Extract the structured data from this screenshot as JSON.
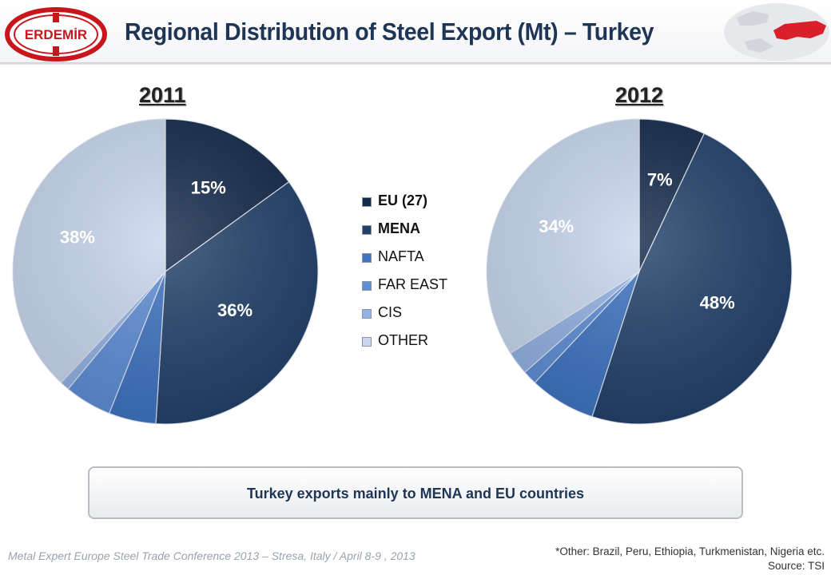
{
  "header": {
    "logo_text": "ERDEMİR",
    "title": "Regional Distribution of Steel Export (Mt) – Turkey"
  },
  "legend": {
    "items": [
      {
        "label": "EU (27)",
        "color": "#142a4a",
        "bold": true
      },
      {
        "label": "MENA",
        "color": "#23426b",
        "bold": true
      },
      {
        "label": "NAFTA",
        "color": "#3f74c2",
        "bold": false
      },
      {
        "label": "FAR EAST",
        "color": "#5e8ed6",
        "bold": false
      },
      {
        "label": "CIS",
        "color": "#92b2e3",
        "bold": false
      },
      {
        "label": "OTHER",
        "color": "#c9d7ee",
        "bold": false
      }
    ]
  },
  "chart_data": [
    {
      "type": "pie",
      "title": "2011",
      "categories": [
        "EU (27)",
        "MENA",
        "NAFTA",
        "FAR EAST",
        "CIS",
        "OTHER"
      ],
      "values": [
        15,
        36,
        5,
        5,
        1,
        38
      ],
      "data_labels": [
        "15%",
        "36%",
        "",
        "",
        "",
        "38%"
      ],
      "colors": [
        "#142a4a",
        "#23426b",
        "#3f74c2",
        "#5e8ed6",
        "#92b2e3",
        "#c9d7ee"
      ]
    },
    {
      "type": "pie",
      "title": "2012",
      "categories": [
        "EU (27)",
        "MENA",
        "NAFTA",
        "FAR EAST",
        "CIS",
        "OTHER"
      ],
      "values": [
        7,
        48,
        7,
        1.5,
        2.5,
        34
      ],
      "data_labels": [
        "7%",
        "48%",
        "",
        "",
        "",
        "34%"
      ],
      "colors": [
        "#142a4a",
        "#23426b",
        "#3f74c2",
        "#5e8ed6",
        "#92b2e3",
        "#c9d7ee"
      ]
    }
  ],
  "callout": {
    "text": "Turkey exports mainly to MENA and EU countries"
  },
  "footer": {
    "conference": "Metal Expert Europe Steel Trade Conference 2013 – Stresa, Italy / April 8-9 , 2013",
    "note_line1": "*Other: Brazil, Peru, Ethiopia, Turkmenistan, Nigeria etc.",
    "note_line2": "Source: TSI"
  }
}
